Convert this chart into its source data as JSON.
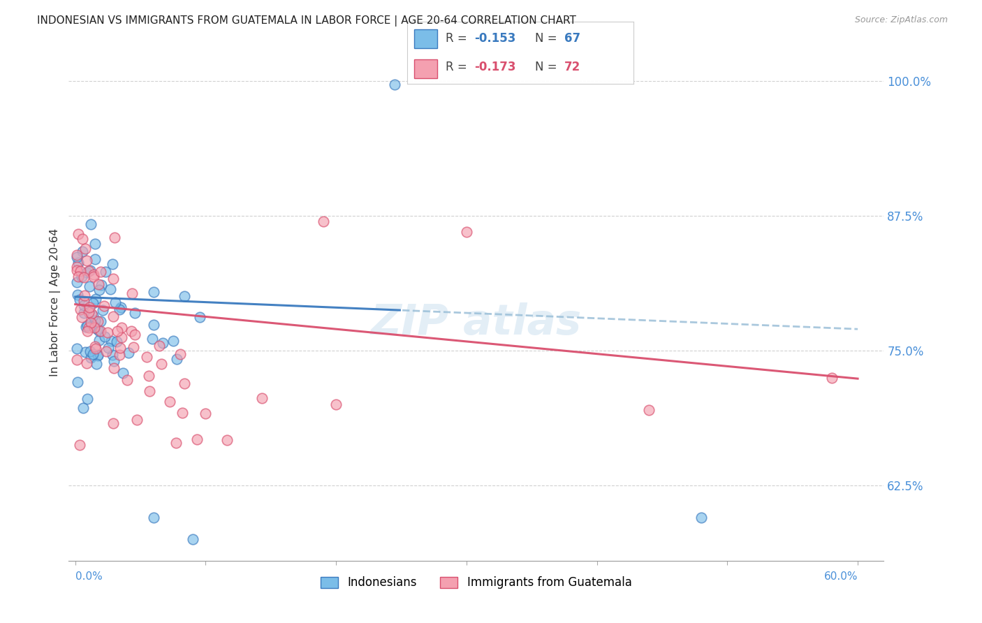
{
  "title": "INDONESIAN VS IMMIGRANTS FROM GUATEMALA IN LABOR FORCE | AGE 20-64 CORRELATION CHART",
  "source": "Source: ZipAtlas.com",
  "ylabel": "In Labor Force | Age 20-64",
  "ytick_vals": [
    0.625,
    0.75,
    0.875,
    1.0
  ],
  "xmin": -0.005,
  "xmax": 0.62,
  "ymin": 0.555,
  "ymax": 1.035,
  "color_blue": "#7bbde8",
  "color_pink": "#f4a0b0",
  "color_blue_line": "#3a7abf",
  "color_pink_line": "#d94f6e",
  "color_dashed_blue": "#9bbfd8",
  "color_axis_labels": "#4a90d9",
  "watermark_color": "#cce0f0"
}
